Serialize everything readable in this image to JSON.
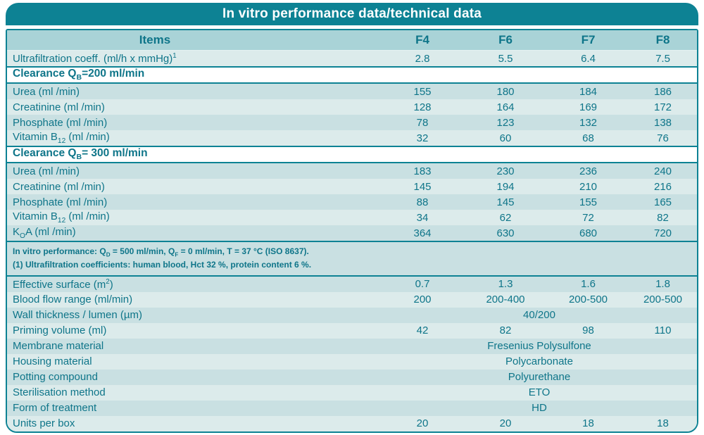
{
  "title": "In vitro performance data/technical data",
  "colors": {
    "teal": "#0d8294",
    "text": "#0e7589",
    "header_row_bg": "#a9d3d7",
    "row_dark": "#c9e0e2",
    "row_light": "#dcebeb",
    "title_text": "#ffffff",
    "section_bg": "#ffffff"
  },
  "header": {
    "items_label": "Items",
    "models": [
      "F4",
      "F6",
      "F7",
      "F8"
    ]
  },
  "sections": [
    {
      "type": "row",
      "shade": "light",
      "label": [
        [
          "t",
          "Ultrafiltration coeff. (ml/h x mmHg)"
        ],
        [
          "sup",
          "1"
        ]
      ],
      "values": [
        "2.8",
        "5.5",
        "6.4",
        "7.5"
      ]
    },
    {
      "type": "section",
      "label": [
        [
          "t",
          "Clearance Q"
        ],
        [
          "sub",
          "B"
        ],
        [
          "t",
          "=200 ml/min"
        ]
      ]
    },
    {
      "type": "row",
      "shade": "dark",
      "label": [
        [
          "t",
          "Urea (ml /min)"
        ]
      ],
      "values": [
        "155",
        "180",
        "184",
        "186"
      ]
    },
    {
      "type": "row",
      "shade": "light",
      "label": [
        [
          "t",
          "Creatinine (ml /min)"
        ]
      ],
      "values": [
        "128",
        "164",
        "169",
        "172"
      ]
    },
    {
      "type": "row",
      "shade": "dark",
      "label": [
        [
          "t",
          "Phosphate (ml /min)"
        ]
      ],
      "values": [
        "78",
        "123",
        "132",
        "138"
      ]
    },
    {
      "type": "row",
      "shade": "light",
      "label": [
        [
          "t",
          "Vitamin B"
        ],
        [
          "sub",
          "12"
        ],
        [
          "t",
          " (ml /min)"
        ]
      ],
      "values": [
        "32",
        "60",
        "68",
        "76"
      ]
    },
    {
      "type": "section",
      "label": [
        [
          "t",
          "Clearance Q"
        ],
        [
          "sub",
          "B"
        ],
        [
          "t",
          "= 300 ml/min"
        ]
      ]
    },
    {
      "type": "row",
      "shade": "dark",
      "label": [
        [
          "t",
          "Urea (ml /min)"
        ]
      ],
      "values": [
        "183",
        "230",
        "236",
        "240"
      ]
    },
    {
      "type": "row",
      "shade": "light",
      "label": [
        [
          "t",
          "Creatinine (ml /min)"
        ]
      ],
      "values": [
        "145",
        "194",
        "210",
        "216"
      ]
    },
    {
      "type": "row",
      "shade": "dark",
      "label": [
        [
          "t",
          "Phosphate (ml /min)"
        ]
      ],
      "values": [
        "88",
        "145",
        "155",
        "165"
      ]
    },
    {
      "type": "row",
      "shade": "light",
      "label": [
        [
          "t",
          "Vitamin B"
        ],
        [
          "sub",
          "12"
        ],
        [
          "t",
          " (ml /min)"
        ]
      ],
      "values": [
        "34",
        "62",
        "72",
        "82"
      ]
    },
    {
      "type": "row",
      "shade": "dark",
      "label": [
        [
          "t",
          "K"
        ],
        [
          "sub",
          "O"
        ],
        [
          "t",
          "A (ml /min)"
        ]
      ],
      "values": [
        "364",
        "630",
        "680",
        "720"
      ]
    },
    {
      "type": "note",
      "lines": [
        [
          [
            "t",
            "In vitro performance: Q"
          ],
          [
            "sub",
            "D"
          ],
          [
            "t",
            " = 500 ml/min, Q"
          ],
          [
            "sub",
            "F"
          ],
          [
            "t",
            " = 0 ml/min, T = 37 °C (ISO 8637)."
          ]
        ],
        [
          [
            "t",
            "(1) Ultrafiltration coefficients: human blood, Hct 32 %, protein content 6 %."
          ]
        ]
      ]
    },
    {
      "type": "row",
      "shade": "dark",
      "label": [
        [
          "t",
          "Effective surface (m"
        ],
        [
          "sup",
          "2"
        ],
        [
          "t",
          ")"
        ]
      ],
      "values": [
        "0.7",
        "1.3",
        "1.6",
        "1.8"
      ]
    },
    {
      "type": "row",
      "shade": "light",
      "label": [
        [
          "t",
          "Blood flow range (ml/min)"
        ]
      ],
      "values": [
        "200",
        "200-400",
        "200-500",
        "200-500"
      ]
    },
    {
      "type": "row-span",
      "shade": "dark",
      "label": [
        [
          "t",
          "Wall thickness / lumen (µm)"
        ]
      ],
      "value": "40/200"
    },
    {
      "type": "row",
      "shade": "light",
      "label": [
        [
          "t",
          "Priming volume (ml)"
        ]
      ],
      "values": [
        "42",
        "82",
        "98",
        "110"
      ]
    },
    {
      "type": "row-span",
      "shade": "dark",
      "label": [
        [
          "t",
          "Membrane material"
        ]
      ],
      "value": "Fresenius Polysulfone"
    },
    {
      "type": "row-span",
      "shade": "light",
      "label": [
        [
          "t",
          "Housing material"
        ]
      ],
      "value": "Polycarbonate"
    },
    {
      "type": "row-span",
      "shade": "dark",
      "label": [
        [
          "t",
          "Potting compound"
        ]
      ],
      "value": "Polyurethane"
    },
    {
      "type": "row-span",
      "shade": "light",
      "label": [
        [
          "t",
          "Sterilisation method"
        ]
      ],
      "value": "ETO"
    },
    {
      "type": "row-span",
      "shade": "dark",
      "label": [
        [
          "t",
          "Form of treatment"
        ]
      ],
      "value": "HD"
    },
    {
      "type": "row",
      "shade": "light",
      "label": [
        [
          "t",
          "Units per box"
        ]
      ],
      "values": [
        "20",
        "20",
        "18",
        "18"
      ]
    }
  ]
}
